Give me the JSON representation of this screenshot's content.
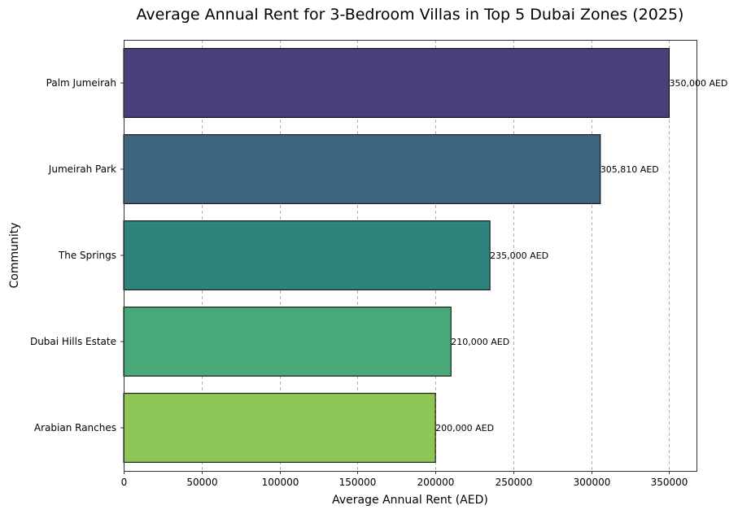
{
  "chart_data": {
    "type": "bar",
    "orientation": "horizontal",
    "title": "Average Annual Rent for 3-Bedroom Villas in Top 5 Dubai Zones (2025)",
    "xlabel": "Average Annual Rent (AED)",
    "ylabel": "Community",
    "categories": [
      "Palm Jumeirah",
      "Jumeirah Park",
      "The Springs",
      "Dubai Hills Estate",
      "Arabian Ranches"
    ],
    "values": [
      350000,
      305810,
      235000,
      210000,
      200000
    ],
    "data_labels": [
      "350,000 AED",
      "305,810 AED",
      "235,000 AED",
      "210,000 AED",
      "200,000 AED"
    ],
    "colors": [
      "#4a3f7a",
      "#3d6582",
      "#2e837c",
      "#49a878",
      "#8dc557"
    ],
    "xlim": [
      0,
      367500
    ],
    "xticks": [
      0,
      50000,
      100000,
      150000,
      200000,
      250000,
      300000,
      350000
    ],
    "xtick_labels": [
      "0",
      "50000",
      "100000",
      "150000",
      "200000",
      "250000",
      "300000",
      "350000"
    ],
    "grid": "x-dashed",
    "legend": "none"
  }
}
